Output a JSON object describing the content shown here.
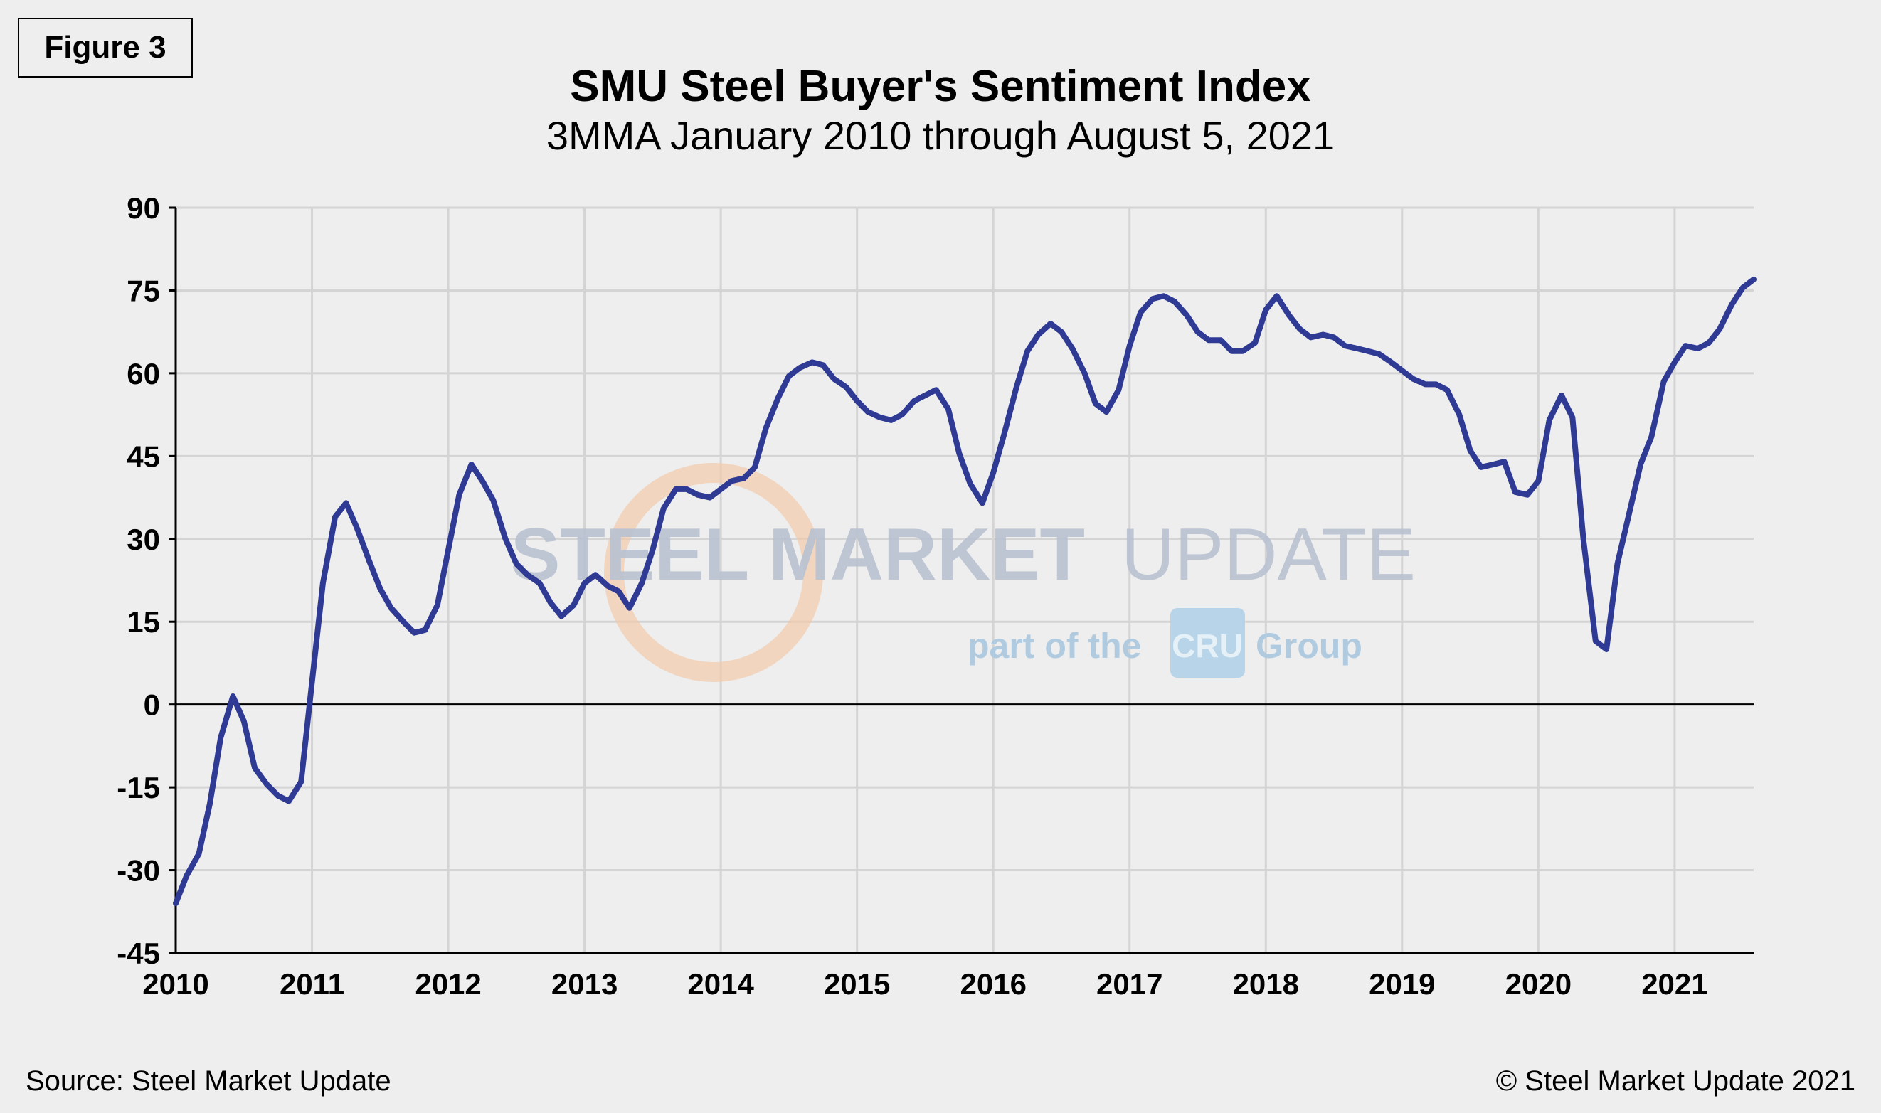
{
  "figure_label": "Figure 3",
  "source": "Source: Steel Market Update",
  "copyright": "© Steel Market Update 2021",
  "watermark": {
    "brand_bold": "STEEL MARKET",
    "brand_light": "UPDATE",
    "tagline_prefix": "part of the",
    "tagline_logo": "CRU",
    "tagline_suffix": "Group"
  },
  "colors": {
    "line": "#2e3a94",
    "grid": "#d4d4d4",
    "background": "#eeeeee"
  },
  "chart_data": {
    "type": "line",
    "title": "SMU Steel Buyer's Sentiment Index",
    "subtitle": "3MMA January 2010 through August 5, 2021",
    "xlabel": "",
    "ylabel": "",
    "xlim": [
      2010,
      2021.58
    ],
    "ylim": [
      -45,
      90
    ],
    "yticks": [
      90,
      75,
      60,
      45,
      30,
      15,
      0,
      -15,
      -30,
      -45
    ],
    "xticks": [
      2010,
      2011,
      2012,
      2013,
      2014,
      2015,
      2016,
      2017,
      2018,
      2019,
      2020,
      2021
    ],
    "series": [
      {
        "name": "SMU Steel Buyer's Sentiment Index (3MMA)",
        "points": [
          [
            2010.0,
            -36
          ],
          [
            2010.08,
            -31
          ],
          [
            2010.17,
            -27
          ],
          [
            2010.25,
            -18
          ],
          [
            2010.33,
            -6
          ],
          [
            2010.42,
            1.5
          ],
          [
            2010.5,
            -3
          ],
          [
            2010.58,
            -11.5
          ],
          [
            2010.67,
            -14.5
          ],
          [
            2010.75,
            -16.5
          ],
          [
            2010.83,
            -17.5
          ],
          [
            2010.92,
            -14
          ],
          [
            2011.0,
            4
          ],
          [
            2011.08,
            22
          ],
          [
            2011.17,
            34
          ],
          [
            2011.25,
            36.5
          ],
          [
            2011.33,
            32
          ],
          [
            2011.42,
            26
          ],
          [
            2011.5,
            21
          ],
          [
            2011.58,
            17.5
          ],
          [
            2011.67,
            15
          ],
          [
            2011.75,
            13
          ],
          [
            2011.83,
            13.5
          ],
          [
            2011.92,
            18
          ],
          [
            2012.0,
            28
          ],
          [
            2012.08,
            38
          ],
          [
            2012.17,
            43.5
          ],
          [
            2012.25,
            40.5
          ],
          [
            2012.33,
            37
          ],
          [
            2012.42,
            30
          ],
          [
            2012.5,
            25.5
          ],
          [
            2012.58,
            23.5
          ],
          [
            2012.67,
            22
          ],
          [
            2012.75,
            18.5
          ],
          [
            2012.83,
            16
          ],
          [
            2012.92,
            18
          ],
          [
            2013.0,
            22
          ],
          [
            2013.08,
            23.5
          ],
          [
            2013.17,
            21.5
          ],
          [
            2013.25,
            20.5
          ],
          [
            2013.33,
            17.5
          ],
          [
            2013.42,
            22
          ],
          [
            2013.5,
            28
          ],
          [
            2013.58,
            35.5
          ],
          [
            2013.67,
            39
          ],
          [
            2013.75,
            39
          ],
          [
            2013.83,
            38
          ],
          [
            2013.92,
            37.5
          ],
          [
            2014.0,
            39
          ],
          [
            2014.08,
            40.5
          ],
          [
            2014.17,
            41
          ],
          [
            2014.25,
            43
          ],
          [
            2014.33,
            50
          ],
          [
            2014.42,
            55.5
          ],
          [
            2014.5,
            59.5
          ],
          [
            2014.58,
            61
          ],
          [
            2014.67,
            62
          ],
          [
            2014.75,
            61.5
          ],
          [
            2014.83,
            59
          ],
          [
            2014.92,
            57.5
          ],
          [
            2015.0,
            55
          ],
          [
            2015.08,
            53
          ],
          [
            2015.17,
            52
          ],
          [
            2015.25,
            51.5
          ],
          [
            2015.33,
            52.5
          ],
          [
            2015.42,
            55
          ],
          [
            2015.5,
            56
          ],
          [
            2015.58,
            57
          ],
          [
            2015.67,
            53.5
          ],
          [
            2015.75,
            45.5
          ],
          [
            2015.83,
            40
          ],
          [
            2015.92,
            36.5
          ],
          [
            2016.0,
            42
          ],
          [
            2016.08,
            49
          ],
          [
            2016.17,
            57.5
          ],
          [
            2016.25,
            64
          ],
          [
            2016.33,
            67
          ],
          [
            2016.42,
            69
          ],
          [
            2016.5,
            67.5
          ],
          [
            2016.58,
            64.5
          ],
          [
            2016.67,
            60
          ],
          [
            2016.75,
            54.5
          ],
          [
            2016.83,
            53
          ],
          [
            2016.92,
            57
          ],
          [
            2017.0,
            65
          ],
          [
            2017.08,
            71
          ],
          [
            2017.17,
            73.5
          ],
          [
            2017.25,
            74
          ],
          [
            2017.33,
            73
          ],
          [
            2017.42,
            70.5
          ],
          [
            2017.5,
            67.5
          ],
          [
            2017.58,
            66
          ],
          [
            2017.67,
            66
          ],
          [
            2017.75,
            64
          ],
          [
            2017.83,
            64
          ],
          [
            2017.92,
            65.5
          ],
          [
            2018.0,
            71.5
          ],
          [
            2018.08,
            74
          ],
          [
            2018.17,
            70.5
          ],
          [
            2018.25,
            68
          ],
          [
            2018.33,
            66.5
          ],
          [
            2018.42,
            67
          ],
          [
            2018.5,
            66.5
          ],
          [
            2018.58,
            65
          ],
          [
            2018.67,
            64.5
          ],
          [
            2018.75,
            64
          ],
          [
            2018.83,
            63.5
          ],
          [
            2018.92,
            62
          ],
          [
            2019.0,
            60.5
          ],
          [
            2019.08,
            59
          ],
          [
            2019.17,
            58
          ],
          [
            2019.25,
            58
          ],
          [
            2019.33,
            57
          ],
          [
            2019.42,
            52.5
          ],
          [
            2019.5,
            46
          ],
          [
            2019.58,
            43
          ],
          [
            2019.67,
            43.5
          ],
          [
            2019.75,
            44
          ],
          [
            2019.83,
            38.5
          ],
          [
            2019.92,
            38
          ],
          [
            2020.0,
            40.5
          ],
          [
            2020.08,
            51.5
          ],
          [
            2020.17,
            56
          ],
          [
            2020.25,
            52
          ],
          [
            2020.33,
            30
          ],
          [
            2020.42,
            11.5
          ],
          [
            2020.5,
            10
          ],
          [
            2020.58,
            25.5
          ],
          [
            2020.67,
            35
          ],
          [
            2020.75,
            43.5
          ],
          [
            2020.83,
            48.5
          ],
          [
            2020.92,
            58.5
          ],
          [
            2021.0,
            62
          ],
          [
            2021.08,
            65
          ],
          [
            2021.17,
            64.5
          ],
          [
            2021.25,
            65.5
          ],
          [
            2021.33,
            68
          ],
          [
            2021.42,
            72.5
          ],
          [
            2021.5,
            75.5
          ],
          [
            2021.58,
            77
          ]
        ]
      }
    ]
  }
}
